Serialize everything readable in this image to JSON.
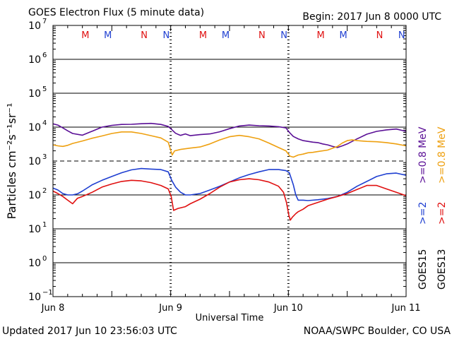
{
  "header": {
    "title": "GOES Electron Flux (5 minute data)",
    "begin": "Begin: 2017 Jun 8 0000 UTC"
  },
  "footer": {
    "updated": "Updated 2017 Jun 10 23:56:03 UTC",
    "credit": "NOAA/SWPC Boulder, CO USA"
  },
  "colors": {
    "goes15_hi": "#1f3fd1",
    "goes13_hi": "#e01010",
    "goes15_lo": "#5a0f96",
    "goes13_lo": "#eea010",
    "midnight_marker": "#1f3fd1",
    "noon_marker": "#e01010"
  },
  "chart_data": {
    "type": "line",
    "title": "GOES Electron Flux (5 minute data)",
    "xlabel": "Universal Time",
    "ylabel": "Particles cm⁻²s⁻¹sr⁻¹",
    "yscale": "log",
    "ylim": [
      0.1,
      10000000
    ],
    "xlim": [
      0,
      72
    ],
    "x_unit": "hours since 2017 Jun 8 0000 UTC",
    "x_ticks": [
      {
        "x": 0,
        "label": "Jun 8"
      },
      {
        "x": 24,
        "label": "Jun 9"
      },
      {
        "x": 48,
        "label": "Jun 10"
      },
      {
        "x": 72,
        "label": "Jun 11"
      }
    ],
    "y_ticks": [
      {
        "exp": -1,
        "label": "10",
        "sup": "−1"
      },
      {
        "exp": 0,
        "label": "10",
        "sup": "0"
      },
      {
        "exp": 1,
        "label": "10",
        "sup": "1"
      },
      {
        "exp": 2,
        "label": "10",
        "sup": "2"
      },
      {
        "exp": 3,
        "label": "10",
        "sup": "3"
      },
      {
        "exp": 4,
        "label": "10",
        "sup": "4"
      },
      {
        "exp": 5,
        "label": "10",
        "sup": "5"
      },
      {
        "exp": 6,
        "label": "10",
        "sup": "6"
      },
      {
        "exp": 7,
        "label": "10",
        "sup": "7"
      }
    ],
    "threshold": 1000,
    "grid": true,
    "legend_position": "right",
    "legend": [
      {
        "text": "GOES15",
        "color": "#000000",
        "column": 1,
        "row": 1
      },
      {
        "text": ">=2",
        "color": "#1f3fd1",
        "column": 1,
        "row": 2
      },
      {
        "text": ">=0.8 MeV",
        "color": "#5a0f96",
        "column": 1,
        "row": 3
      },
      {
        "text": "GOES13",
        "color": "#000000",
        "column": 2,
        "row": 1
      },
      {
        "text": ">=2",
        "color": "#e01010",
        "column": 2,
        "row": 2
      },
      {
        "text": ">=0.8 MeV",
        "color": "#eea010",
        "column": 2,
        "row": 3
      }
    ],
    "markers": [
      {
        "x": 6.6,
        "label": "M",
        "color": "#e01010"
      },
      {
        "x": 11.2,
        "label": "M",
        "color": "#1f3fd1"
      },
      {
        "x": 18.6,
        "label": "N",
        "color": "#e01010"
      },
      {
        "x": 23.1,
        "label": "N",
        "color": "#1f3fd1"
      },
      {
        "x": 30.6,
        "label": "M",
        "color": "#e01010"
      },
      {
        "x": 35.2,
        "label": "M",
        "color": "#1f3fd1"
      },
      {
        "x": 42.6,
        "label": "N",
        "color": "#e01010"
      },
      {
        "x": 47.1,
        "label": "N",
        "color": "#1f3fd1"
      },
      {
        "x": 54.6,
        "label": "M",
        "color": "#e01010"
      },
      {
        "x": 59.2,
        "label": "M",
        "color": "#1f3fd1"
      },
      {
        "x": 66.6,
        "label": "N",
        "color": "#e01010"
      },
      {
        "x": 71.1,
        "label": "N",
        "color": "#1f3fd1"
      }
    ],
    "series": [
      {
        "name": "GOES15 >=0.8 MeV",
        "color": "#5a0f96",
        "x": [
          0,
          1,
          2,
          3,
          4,
          6,
          8,
          10,
          12,
          14,
          16,
          18,
          20,
          22,
          23.5,
          24.2,
          25,
          26,
          27,
          28,
          30,
          32,
          34,
          36,
          38,
          40,
          42,
          44,
          46,
          47.5,
          48.2,
          49,
          50,
          51,
          52,
          53,
          54,
          55,
          56,
          57,
          58,
          59,
          60,
          62,
          64,
          66,
          68,
          70,
          72
        ],
        "y": [
          12500,
          11500,
          9500,
          7800,
          6500,
          5800,
          7600,
          10000,
          11300,
          12000,
          12100,
          12600,
          12900,
          12000,
          10500,
          8500,
          6600,
          5700,
          6300,
          5600,
          6000,
          6300,
          7300,
          9000,
          10800,
          11500,
          11000,
          10800,
          10300,
          9500,
          7000,
          5300,
          4500,
          4000,
          3800,
          3600,
          3500,
          3200,
          3000,
          2700,
          2500,
          2800,
          3200,
          4500,
          6200,
          7500,
          8300,
          8800,
          7500
        ]
      },
      {
        "name": "GOES13 >=0.8 MeV",
        "color": "#eea010",
        "x": [
          0,
          1,
          2,
          3,
          4,
          6,
          8,
          10,
          12,
          14,
          16,
          18,
          20,
          22,
          23.5,
          24.3,
          24.8,
          26,
          28,
          30,
          32,
          34,
          36,
          38,
          40,
          42,
          44,
          46,
          47.5,
          48.3,
          49,
          50,
          51,
          52,
          53,
          54,
          56,
          58,
          59,
          60,
          61,
          62,
          64,
          66,
          68,
          70,
          72
        ],
        "y": [
          3000,
          2800,
          2700,
          2900,
          3300,
          3900,
          4700,
          5500,
          6500,
          7200,
          7200,
          6500,
          5600,
          4800,
          3600,
          1500,
          2000,
          2200,
          2400,
          2600,
          3200,
          4200,
          5200,
          5700,
          5200,
          4500,
          3400,
          2500,
          2000,
          1400,
          1300,
          1500,
          1600,
          1750,
          1800,
          1900,
          2100,
          2700,
          3400,
          4000,
          4200,
          4000,
          3800,
          3700,
          3500,
          3200,
          2800
        ]
      },
      {
        "name": "GOES15 >=2 MeV",
        "color": "#1f3fd1",
        "x": [
          0,
          1,
          2,
          3,
          4,
          5,
          6,
          8,
          10,
          12,
          14,
          16,
          18,
          20,
          22,
          23.5,
          24.2,
          25,
          26,
          27,
          28,
          30,
          32,
          34,
          36,
          38,
          40,
          42,
          44,
          46,
          47.5,
          48.2,
          49,
          49.5,
          50,
          51,
          52,
          54,
          56,
          58,
          60,
          62,
          64,
          66,
          68,
          70,
          72
        ],
        "y": [
          160,
          140,
          110,
          100,
          100,
          108,
          130,
          200,
          270,
          350,
          450,
          550,
          600,
          580,
          560,
          480,
          270,
          170,
          120,
          100,
          100,
          110,
          140,
          180,
          240,
          320,
          400,
          480,
          560,
          560,
          520,
          450,
          200,
          100,
          70,
          70,
          68,
          72,
          78,
          90,
          120,
          180,
          250,
          350,
          420,
          440,
          380
        ]
      },
      {
        "name": "GOES13 >=2 MeV",
        "color": "#e01010",
        "x": [
          0,
          1,
          2,
          3,
          4,
          5,
          6,
          8,
          10,
          12,
          14,
          16,
          18,
          20,
          22,
          23.5,
          24.1,
          24.6,
          25.5,
          27,
          28,
          30,
          32,
          34,
          36,
          38,
          40,
          42,
          44,
          46,
          47,
          47.6,
          48.1,
          48.4,
          48.8,
          49.5,
          50,
          51,
          52,
          54,
          56,
          58,
          60,
          62,
          64,
          66,
          68,
          70,
          72
        ],
        "y": [
          130,
          110,
          90,
          70,
          55,
          80,
          90,
          120,
          170,
          210,
          250,
          270,
          260,
          230,
          190,
          150,
          90,
          35,
          40,
          45,
          55,
          75,
          110,
          170,
          240,
          280,
          300,
          280,
          240,
          180,
          120,
          60,
          25,
          18,
          22,
          28,
          32,
          38,
          48,
          60,
          75,
          90,
          110,
          145,
          190,
          190,
          150,
          120,
          95
        ]
      }
    ]
  }
}
